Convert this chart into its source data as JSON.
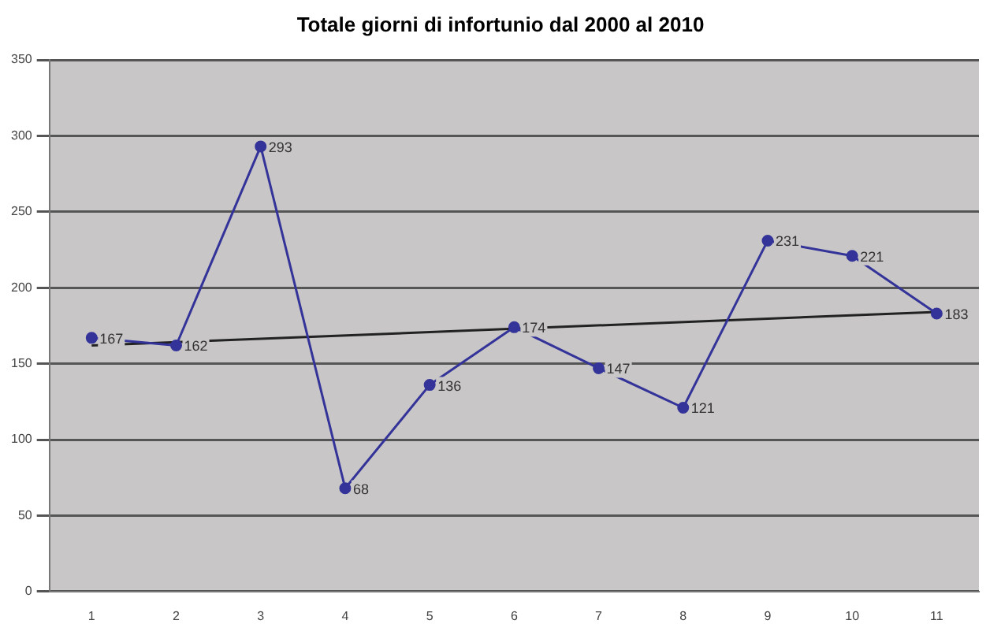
{
  "chart_data": {
    "type": "line",
    "title": "Totale giorni di infortunio dal 2000 al 2010",
    "categories": [
      "1",
      "2",
      "3",
      "4",
      "5",
      "6",
      "7",
      "8",
      "9",
      "10",
      "11"
    ],
    "series": [
      {
        "color": "#333399",
        "values": [
          167,
          162,
          293,
          68,
          136,
          174,
          147,
          121,
          231,
          221,
          183
        ],
        "value_labels": [
          "167",
          "162",
          "293",
          "68",
          "136",
          "174",
          "147",
          "121",
          "231",
          "221",
          "183"
        ],
        "marker": "circle"
      },
      {
        "type": "line",
        "color": "#222222",
        "x": [
          "1",
          "11"
        ],
        "values": [
          162,
          184
        ],
        "marker": "none"
      }
    ],
    "ylim": [
      0,
      350
    ],
    "yticks": [
      0,
      50,
      100,
      150,
      200,
      250,
      300,
      350
    ],
    "grid": "y",
    "legend": false
  }
}
